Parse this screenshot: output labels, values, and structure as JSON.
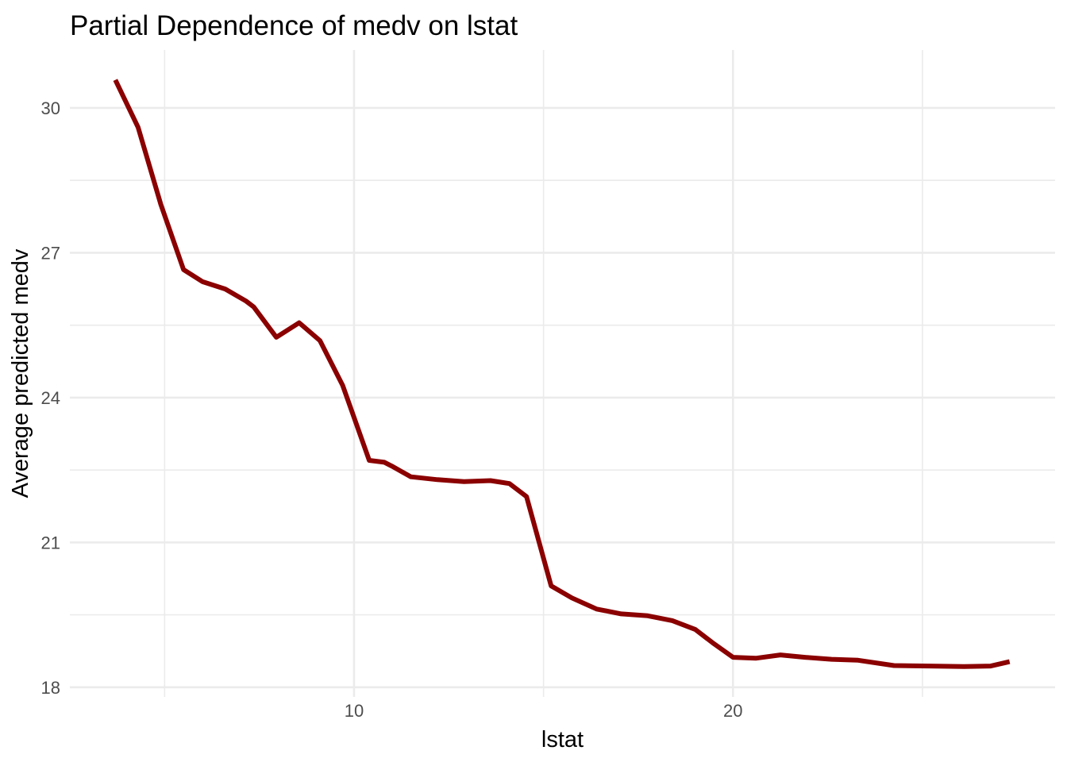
{
  "page": {
    "background_color": "#FFFFFF"
  },
  "chart_data": {
    "type": "line",
    "title": "Partial Dependence of medv on lstat",
    "xlabel": "lstat",
    "ylabel": "Average predicted medv",
    "xlim": [
      2.5,
      28.5
    ],
    "ylim": [
      17.8,
      31.2
    ],
    "grid": {
      "visible": true,
      "color": "#EBEBEB",
      "background": "#FFFFFF"
    },
    "x_ticks": {
      "major": [
        10,
        20
      ],
      "major_labels": [
        "10",
        "20"
      ],
      "minor": [
        5,
        15,
        25
      ]
    },
    "y_ticks": {
      "major": [
        18,
        21,
        24,
        27,
        30
      ],
      "major_labels": [
        "18",
        "21",
        "24",
        "27",
        "30"
      ],
      "minor": [
        19.5,
        22.5,
        25.5,
        28.5
      ]
    },
    "tick_label_color": "#4D4D4D",
    "title_color": "#000000",
    "legend": "none",
    "series": [
      {
        "name": "partial-dependence-of-medv",
        "color": "#8B0000",
        "points": [
          [
            3.7,
            30.58
          ],
          [
            4.3,
            29.6
          ],
          [
            4.9,
            28.0
          ],
          [
            5.5,
            26.65
          ],
          [
            6.0,
            26.4
          ],
          [
            6.6,
            26.25
          ],
          [
            7.15,
            26.0
          ],
          [
            7.35,
            25.88
          ],
          [
            7.95,
            25.25
          ],
          [
            8.55,
            25.55
          ],
          [
            9.1,
            25.18
          ],
          [
            9.7,
            24.25
          ],
          [
            10.4,
            22.7
          ],
          [
            10.8,
            22.66
          ],
          [
            11.0,
            22.58
          ],
          [
            11.5,
            22.36
          ],
          [
            12.2,
            22.3
          ],
          [
            12.9,
            22.26
          ],
          [
            13.6,
            22.28
          ],
          [
            14.1,
            22.22
          ],
          [
            14.55,
            21.95
          ],
          [
            15.2,
            20.1
          ],
          [
            15.75,
            19.85
          ],
          [
            16.4,
            19.62
          ],
          [
            17.05,
            19.52
          ],
          [
            17.75,
            19.48
          ],
          [
            18.4,
            19.38
          ],
          [
            19.0,
            19.2
          ],
          [
            19.5,
            18.9
          ],
          [
            20.0,
            18.62
          ],
          [
            20.6,
            18.6
          ],
          [
            21.25,
            18.67
          ],
          [
            21.9,
            18.62
          ],
          [
            22.6,
            18.58
          ],
          [
            23.3,
            18.56
          ],
          [
            24.25,
            18.45
          ],
          [
            25.2,
            18.44
          ],
          [
            26.1,
            18.43
          ],
          [
            26.8,
            18.44
          ],
          [
            27.3,
            18.53
          ]
        ]
      }
    ]
  }
}
